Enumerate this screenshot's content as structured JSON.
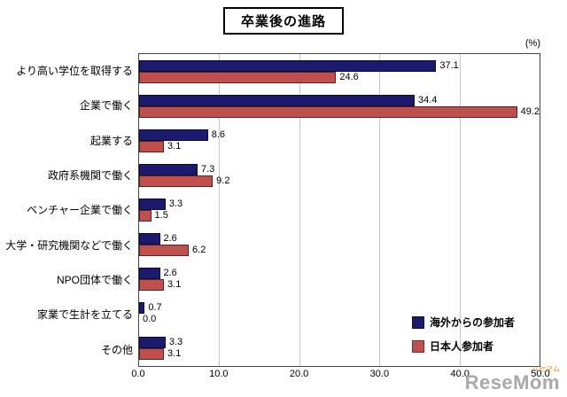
{
  "title": "卒業後の進路",
  "percent_label": "(%)",
  "watermark": {
    "text": "ReseMom",
    "ruby": "リセマム"
  },
  "chart_data": {
    "type": "bar",
    "orientation": "horizontal",
    "title": "卒業後の進路",
    "xlabel": "(%)",
    "ylabel": "",
    "xlim": [
      0,
      50
    ],
    "xticks": [
      "0.0",
      "10.0",
      "20.0",
      "30.0",
      "40.0",
      "50.0"
    ],
    "grid": true,
    "legend_position": "inside-bottom-right",
    "categories": [
      "より高い学位を取得する",
      "企業で働く",
      "起業する",
      "政府系機関で働く",
      "ベンチャー企業で働く",
      "大学・研究機関などで働く",
      "NPO団体で働く",
      "家業で生計を立てる",
      "その他"
    ],
    "series": [
      {
        "name": "海外からの参加者",
        "color": "#1c1a6e",
        "values": [
          37.1,
          34.4,
          8.6,
          7.3,
          3.3,
          2.6,
          2.6,
          0.7,
          3.3
        ]
      },
      {
        "name": "日本人参加者",
        "color": "#c0504d",
        "values": [
          24.6,
          49.2,
          3.1,
          9.2,
          1.5,
          6.2,
          3.1,
          0.0,
          3.1
        ]
      }
    ]
  }
}
